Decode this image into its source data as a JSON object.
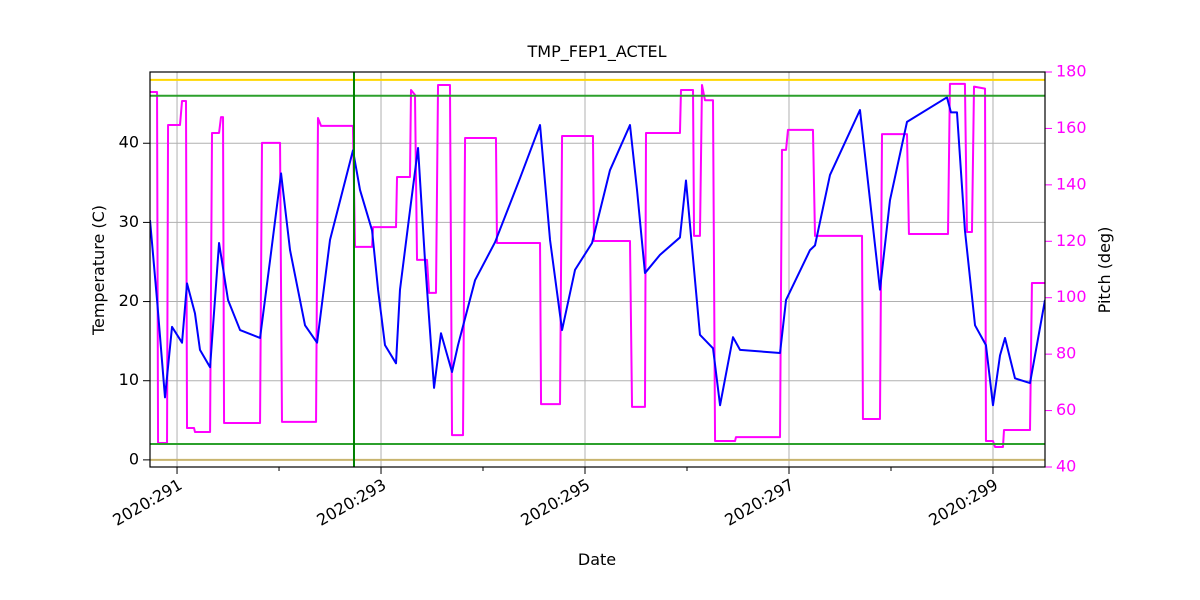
{
  "chart_data": {
    "type": "line",
    "title": "TMP_FEP1_ACTEL",
    "x_label": "Date",
    "y_label": "Temperature (C)",
    "y2_label": "Pitch (deg)",
    "y2_color": "#ff00ff",
    "grid": true,
    "xlim": [
      290.735,
      299.51
    ],
    "xticks": [
      {
        "value": 291,
        "label": "2020:291"
      },
      {
        "value": 293,
        "label": "2020:293"
      },
      {
        "value": 295,
        "label": "2020:295"
      },
      {
        "value": 297,
        "label": "2020:297"
      },
      {
        "value": 299,
        "label": "2020:299"
      }
    ],
    "xminorticks": [
      292,
      294,
      296,
      298
    ],
    "ylim": [
      -0.9,
      49
    ],
    "yticks": [
      0,
      10,
      20,
      30,
      40
    ],
    "y2lim": [
      40,
      180
    ],
    "y2ticks": [
      40,
      60,
      80,
      100,
      120,
      140,
      160,
      180
    ],
    "hlines": [
      {
        "value": 48,
        "color": "#ffd700"
      },
      {
        "value": 46,
        "color": "#2ca02c"
      },
      {
        "value": 2,
        "color": "#2ca02c"
      },
      {
        "value": 0,
        "color": "#c8b46e"
      }
    ],
    "vlines": [
      {
        "value": 292.735,
        "color": "#008000"
      }
    ],
    "series": [
      {
        "color": "#ff00ff",
        "axis": "y2",
        "x": [
          290.735,
          290.804,
          290.814,
          290.902,
          290.912,
          291.029,
          291.049,
          291.088,
          291.098,
          291.167,
          291.176,
          291.324,
          291.343,
          291.412,
          291.431,
          291.451,
          291.461,
          291.814,
          291.833,
          292.01,
          292.029,
          292.363,
          292.382,
          292.412,
          292.725,
          292.745,
          292.912,
          292.922,
          293.147,
          293.157,
          293.284,
          293.294,
          293.333,
          293.353,
          293.451,
          293.471,
          293.539,
          293.559,
          293.676,
          293.696,
          293.804,
          293.824,
          294.127,
          294.137,
          294.559,
          294.569,
          294.755,
          294.775,
          295.078,
          295.088,
          295.441,
          295.461,
          295.588,
          295.598,
          295.931,
          295.941,
          296.059,
          296.069,
          296.127,
          296.147,
          296.176,
          296.255,
          296.275,
          296.471,
          296.48,
          296.912,
          296.931,
          296.971,
          296.99,
          297.235,
          297.255,
          297.716,
          297.725,
          297.892,
          297.912,
          298.157,
          298.176,
          298.559,
          298.578,
          298.725,
          298.745,
          298.794,
          298.814,
          298.922,
          298.931,
          299.0,
          299.02,
          299.098,
          299.108,
          299.363,
          299.382,
          299.51
        ],
        "values": [
          172.9,
          172.9,
          48.5,
          48.5,
          161.2,
          161.2,
          169.7,
          169.7,
          53.8,
          53.8,
          52.4,
          52.4,
          158.4,
          158.4,
          164.0,
          164.0,
          55.6,
          55.6,
          154.9,
          154.9,
          56.0,
          56.0,
          163.7,
          160.9,
          160.9,
          118.0,
          118.0,
          125.0,
          125.0,
          142.8,
          142.8,
          173.6,
          171.9,
          113.4,
          113.4,
          101.7,
          101.7,
          175.4,
          175.4,
          51.3,
          51.3,
          156.6,
          156.6,
          119.4,
          119.4,
          62.3,
          62.3,
          157.3,
          157.3,
          120.1,
          120.1,
          61.3,
          61.3,
          158.4,
          158.4,
          173.6,
          173.6,
          121.9,
          121.9,
          175.4,
          170.0,
          170.0,
          49.2,
          49.2,
          50.6,
          50.6,
          152.4,
          152.4,
          159.5,
          159.5,
          121.9,
          121.9,
          57.0,
          57.0,
          158.0,
          158.0,
          122.6,
          122.6,
          175.8,
          175.8,
          123.3,
          123.3,
          174.8,
          174.1,
          49.2,
          49.2,
          47.1,
          47.1,
          53.1,
          53.1,
          105.2,
          105.2
        ]
      },
      {
        "color": "#0000ff",
        "x": [
          290.735,
          290.804,
          290.882,
          290.951,
          291.049,
          291.098,
          291.176,
          291.225,
          291.324,
          291.412,
          291.5,
          291.618,
          291.814,
          291.912,
          292.02,
          292.108,
          292.255,
          292.373,
          292.5,
          292.725,
          292.794,
          292.912,
          292.971,
          293.039,
          293.147,
          293.186,
          293.284,
          293.363,
          293.431,
          293.52,
          293.588,
          293.696,
          293.755,
          293.922,
          294.118,
          294.363,
          294.559,
          294.657,
          294.775,
          294.902,
          295.069,
          295.245,
          295.441,
          295.51,
          295.588,
          295.735,
          295.931,
          295.99,
          296.127,
          296.255,
          296.324,
          296.451,
          296.52,
          296.912,
          296.971,
          297.206,
          297.255,
          297.402,
          297.696,
          297.892,
          297.99,
          298.157,
          298.549,
          298.588,
          298.647,
          298.725,
          298.824,
          298.931,
          299.0,
          299.069,
          299.118,
          299.216,
          299.363,
          299.51
        ],
        "values": [
          30.3,
          20.2,
          7.9,
          16.8,
          14.8,
          22.3,
          18.5,
          13.9,
          11.7,
          27.4,
          20.2,
          16.4,
          15.4,
          25.2,
          36.2,
          26.5,
          17.0,
          14.8,
          27.8,
          39.1,
          34.1,
          29.0,
          21.5,
          14.5,
          12.2,
          21.5,
          31.5,
          39.4,
          25.2,
          9.1,
          16.0,
          11.1,
          14.5,
          22.7,
          27.5,
          35.6,
          42.3,
          27.8,
          16.4,
          24.0,
          27.4,
          36.6,
          42.3,
          34.1,
          23.6,
          25.9,
          28.1,
          35.3,
          15.8,
          14.1,
          6.9,
          15.5,
          13.9,
          13.5,
          20.2,
          26.5,
          27.1,
          36.0,
          44.2,
          21.5,
          32.8,
          42.7,
          45.8,
          43.9,
          43.9,
          29.0,
          17.0,
          14.5,
          6.9,
          13.2,
          15.4,
          10.3,
          9.7,
          20.2
        ]
      }
    ]
  }
}
